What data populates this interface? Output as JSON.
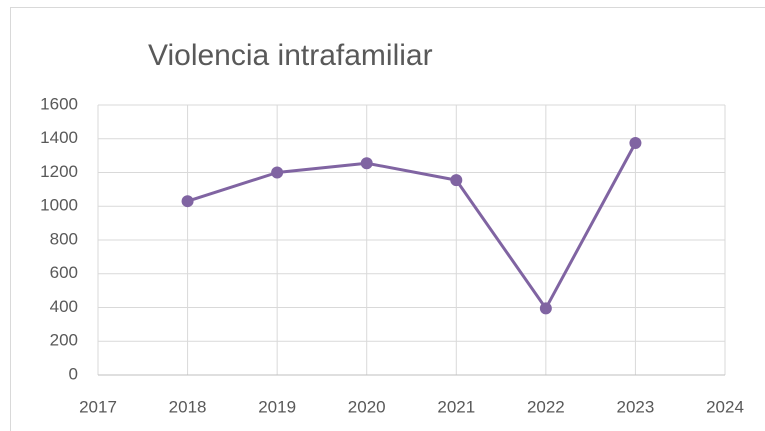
{
  "chart_data": {
    "type": "line",
    "title": "Violencia intrafamiliar",
    "x": [
      2018,
      2019,
      2020,
      2021,
      2022,
      2023
    ],
    "series": [
      {
        "name": "Violencia intrafamiliar",
        "color": "#8064a2",
        "values": [
          1030,
          1200,
          1255,
          1155,
          395,
          1375
        ]
      }
    ],
    "xlim": [
      2017,
      2024
    ],
    "xticks": [
      2017,
      2018,
      2019,
      2020,
      2021,
      2022,
      2023,
      2024
    ],
    "ylim": [
      0,
      1600
    ],
    "yticks": [
      0,
      200,
      400,
      600,
      800,
      1000,
      1200,
      1400,
      1600
    ],
    "grid": true
  }
}
